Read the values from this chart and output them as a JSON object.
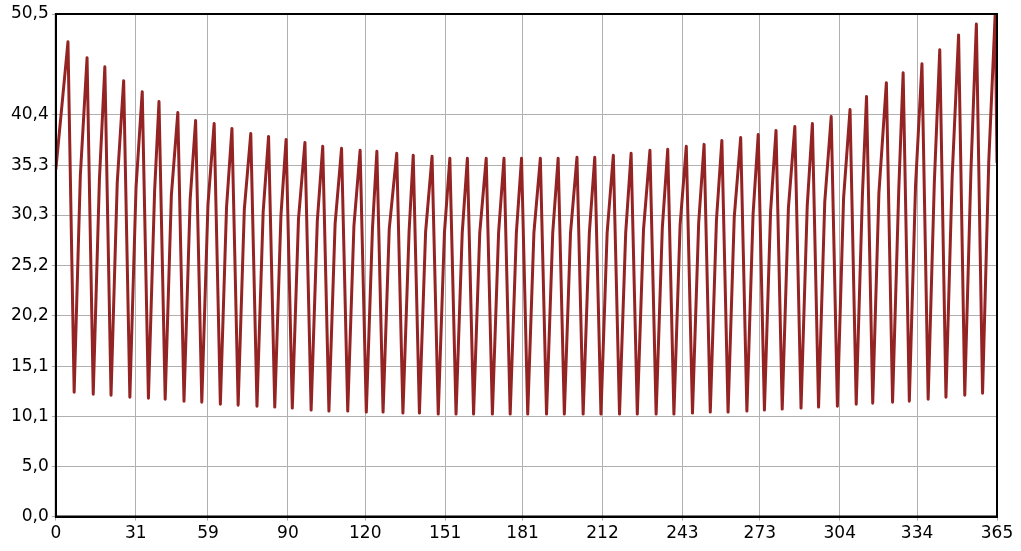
{
  "chart_data": {
    "type": "line",
    "marker": "none",
    "line_style": "solid",
    "grid": true,
    "legend": false,
    "xlim": [
      0,
      365
    ],
    "xticks": [
      0,
      31,
      59,
      90,
      120,
      151,
      181,
      212,
      243,
      273,
      304,
      334,
      365
    ],
    "ylim": [
      0,
      50.5
    ],
    "yticks": [
      {
        "value": 0,
        "label": "0,0"
      },
      {
        "value": 5.0,
        "label": "5,0"
      },
      {
        "value": 10.1,
        "label": "10,1"
      },
      {
        "value": 15.1,
        "label": "15,1"
      },
      {
        "value": 20.2,
        "label": "20,2"
      },
      {
        "value": 25.2,
        "label": "25,2"
      },
      {
        "value": 30.3,
        "label": "30,3"
      },
      {
        "value": 35.3,
        "label": "35,3"
      },
      {
        "value": 40.4,
        "label": "40,4"
      },
      {
        "value": 50.5,
        "label": "50,5"
      }
    ],
    "series": [
      {
        "color": "#942323",
        "x": [
          0,
          4.7,
          7.1,
          9.5,
          12.1,
          14.5,
          16.9,
          19,
          21.4,
          23.8,
          26.3,
          28.7,
          31.1,
          33.5,
          35.9,
          38.3,
          40,
          42.4,
          44.8,
          47.3,
          49.7,
          52.1,
          54.2,
          56.6,
          59,
          61.4,
          63.8,
          66.2,
          68.3,
          70.7,
          73.1,
          75.6,
          78,
          80.4,
          82.5,
          84.9,
          87.3,
          89.3,
          91.7,
          94.1,
          96.6,
          99,
          101.4,
          103.5,
          105.9,
          108.3,
          110.8,
          113.2,
          115.6,
          118,
          120.4,
          122.8,
          124.5,
          126.9,
          129.3,
          132.2,
          134.6,
          137,
          138.6,
          141,
          143.4,
          145.9,
          148.3,
          150.7,
          152.8,
          155.2,
          157.6,
          159.6,
          162,
          164.4,
          166.9,
          169.3,
          171.7,
          173.8,
          176.2,
          178.6,
          180.6,
          183,
          185.4,
          187.9,
          190.3,
          192.7,
          194.8,
          197.2,
          199.6,
          202.1,
          204.5,
          206.9,
          209,
          211.4,
          213.8,
          216.2,
          218.6,
          221,
          223.1,
          225.5,
          227.9,
          230.4,
          232.8,
          235.2,
          237.3,
          239.7,
          242.1,
          244.5,
          246.9,
          249.3,
          251.4,
          253.8,
          256.2,
          258.3,
          260.7,
          263.1,
          265.6,
          268,
          270.4,
          272.4,
          274.8,
          277.2,
          279.3,
          281.7,
          284.1,
          286.6,
          289,
          291.4,
          293.4,
          295.8,
          298.2,
          300.7,
          303.1,
          305.5,
          308,
          310.4,
          312.8,
          314.4,
          316.8,
          319.2,
          322.1,
          324.5,
          326.9,
          328.6,
          331,
          333.4,
          335.9,
          338.3,
          340.7,
          342.8,
          345.2,
          347.6,
          350.1,
          352.5,
          354.9,
          357,
          359.4,
          361.8,
          364.3,
          365
        ],
        "values": [
          34.9,
          47.7,
          12.5,
          34.3,
          46.1,
          12.3,
          33.9,
          45.2,
          12.2,
          33.5,
          43.8,
          12.0,
          33.1,
          42.7,
          11.9,
          32.7,
          41.7,
          11.8,
          32.3,
          40.6,
          11.6,
          31.9,
          39.8,
          11.5,
          31.4,
          39.5,
          11.3,
          31.1,
          39.0,
          11.2,
          30.9,
          38.5,
          11.1,
          30.6,
          38.2,
          11.0,
          30.3,
          37.9,
          10.9,
          29.9,
          37.6,
          10.7,
          29.7,
          37.2,
          10.6,
          29.4,
          37.0,
          10.6,
          29.2,
          36.8,
          10.5,
          29.0,
          36.7,
          10.5,
          28.9,
          36.5,
          10.4,
          28.7,
          36.3,
          10.4,
          28.6,
          36.2,
          10.3,
          28.5,
          36.0,
          10.3,
          28.5,
          36.0,
          10.3,
          28.5,
          36.0,
          10.3,
          28.5,
          36.0,
          10.3,
          28.5,
          36.0,
          10.3,
          28.5,
          36.0,
          10.3,
          28.5,
          36.0,
          10.3,
          28.5,
          36.1,
          10.3,
          28.5,
          36.1,
          10.3,
          28.5,
          36.3,
          10.3,
          28.5,
          36.5,
          10.3,
          28.8,
          36.8,
          10.3,
          29.0,
          36.9,
          10.3,
          29.3,
          37.2,
          10.4,
          29.5,
          37.4,
          10.5,
          29.8,
          37.8,
          10.5,
          30.1,
          38.1,
          10.6,
          30.4,
          38.4,
          10.7,
          30.7,
          38.8,
          10.8,
          31.0,
          39.2,
          10.9,
          31.2,
          39.5,
          11.0,
          31.6,
          40.2,
          11.1,
          32.0,
          40.9,
          11.3,
          32.3,
          42.2,
          11.4,
          32.5,
          43.6,
          11.5,
          32.8,
          44.6,
          11.6,
          33.2,
          45.5,
          11.8,
          33.6,
          46.9,
          12.0,
          34.1,
          48.4,
          12.2,
          34.8,
          49.5,
          12.4,
          35.6,
          50.5,
          35.6
        ]
      }
    ]
  }
}
